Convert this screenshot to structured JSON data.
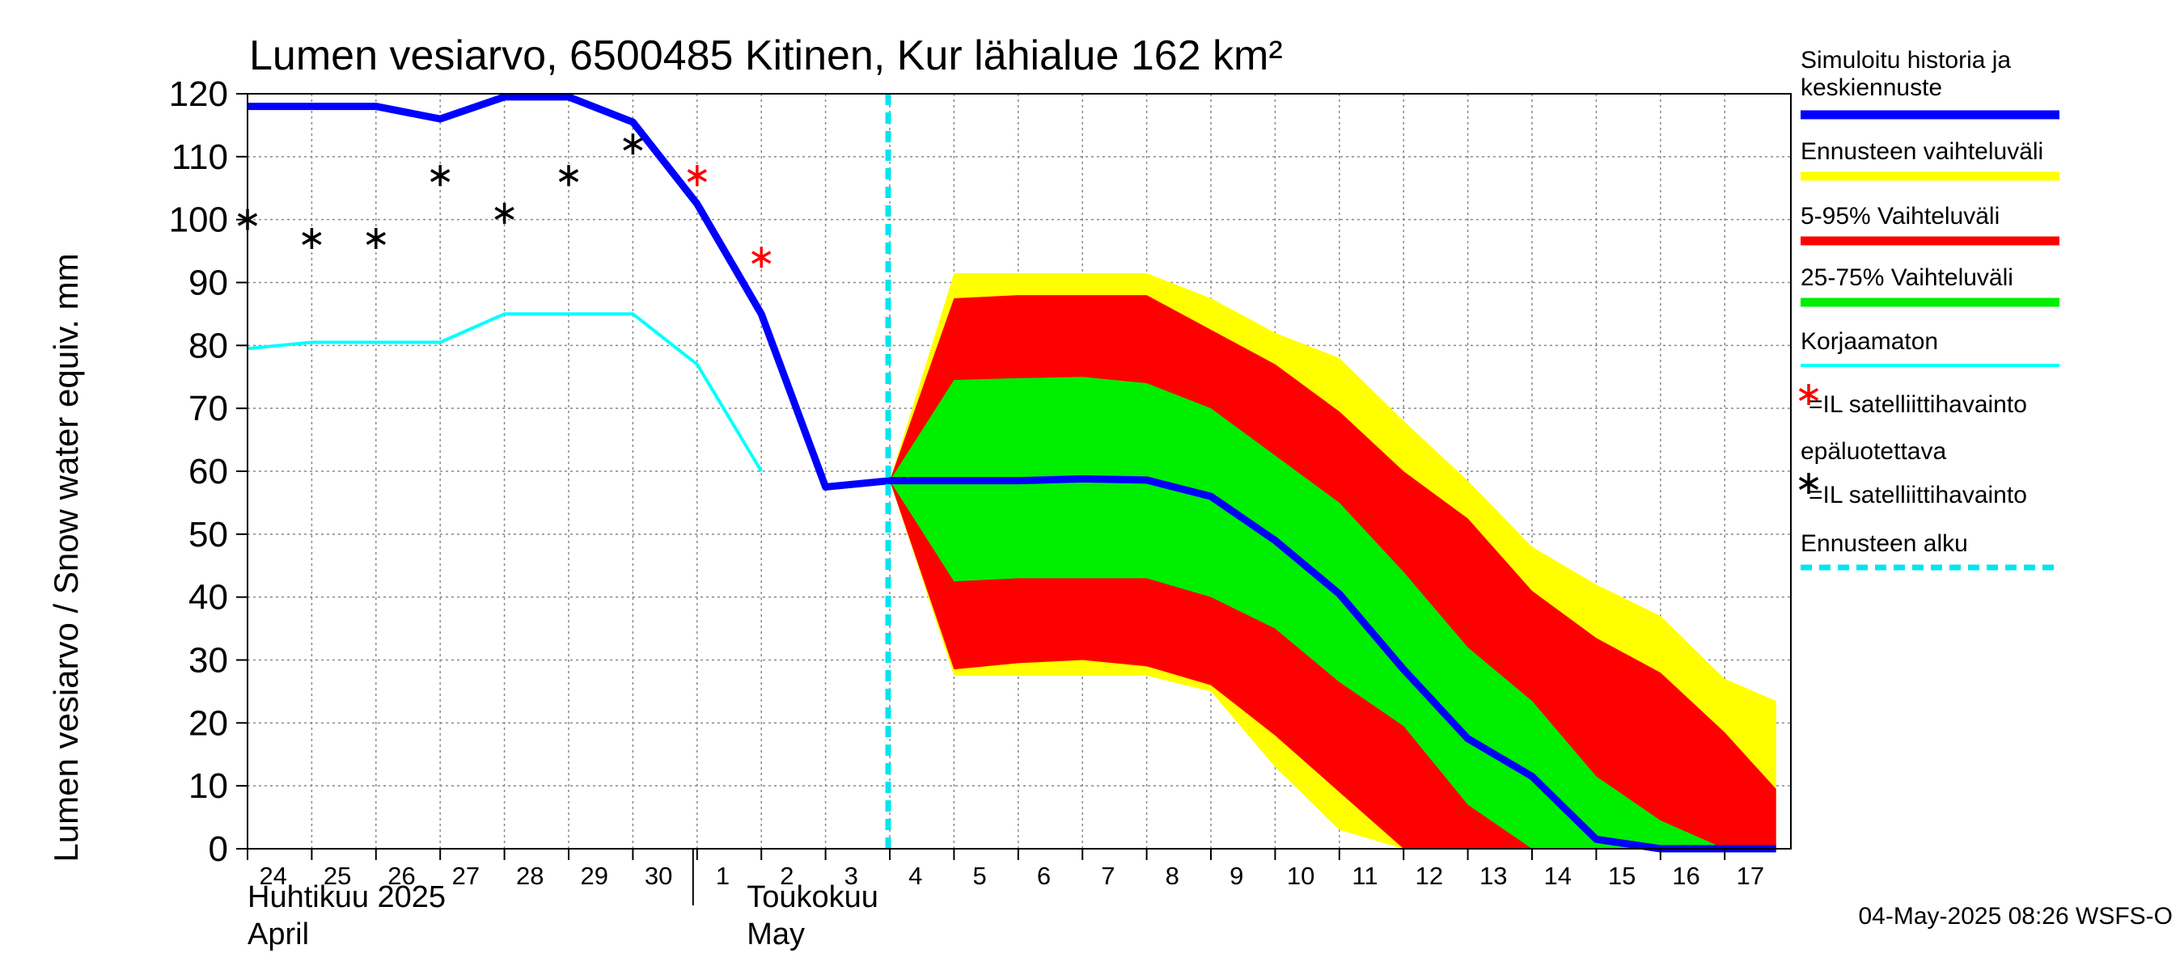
{
  "chart_data": {
    "type": "line",
    "title": "Lumen vesiarvo, 6500485 Kitinen, Kur lähialue 162 km²",
    "ylabel": "Lumen vesiarvo / Snow water equiv.    mm",
    "ylim": [
      0,
      120
    ],
    "yticks": [
      0,
      10,
      20,
      30,
      40,
      50,
      60,
      70,
      80,
      90,
      100,
      110,
      120
    ],
    "grid": true,
    "x_tick_labels": [
      "24",
      "25",
      "26",
      "27",
      "28",
      "29",
      "30",
      "1",
      "2",
      "3",
      "4",
      "5",
      "6",
      "7",
      "8",
      "9",
      "10",
      "11",
      "12",
      "13",
      "14",
      "15",
      "16",
      "17"
    ],
    "month_labels": [
      {
        "line1": "Huhtikuu  2025",
        "line2": "April"
      },
      {
        "line1": "Toukokuu",
        "line2": "May"
      }
    ],
    "forecast_start_day": 10,
    "series": [
      {
        "name": "Simuloitu historia ja keskiennuste",
        "color": "#0000ff",
        "x": [
          0,
          1,
          2,
          3,
          4,
          5,
          6,
          7,
          8,
          9,
          10,
          11,
          12,
          13,
          14,
          15,
          16,
          17,
          18,
          19,
          20,
          21,
          22,
          23,
          23.8
        ],
        "y": [
          118,
          118,
          118,
          116,
          119.5,
          119.5,
          115.5,
          102.5,
          85,
          57.5,
          58.5,
          58.5,
          58.5,
          58.8,
          58.6,
          56,
          49,
          40.5,
          28.5,
          17.5,
          11.5,
          1.5,
          0,
          0,
          0
        ]
      },
      {
        "name": "Korjaamaton",
        "color": "#00ffff",
        "x": [
          0,
          1,
          2,
          3,
          4,
          5,
          6,
          7,
          8
        ],
        "y": [
          79.5,
          80.5,
          80.5,
          80.5,
          85,
          85,
          85,
          77,
          60
        ]
      },
      {
        "name": "Ennusteen vaihteluväli",
        "color": "#ffff00",
        "x": [
          10,
          11,
          12,
          13,
          14,
          15,
          16,
          17,
          18,
          19,
          20,
          21,
          22,
          23,
          23.8
        ],
        "upper": [
          58.5,
          91.5,
          91.5,
          91.5,
          91.5,
          87.5,
          82,
          78,
          68,
          58.5,
          48,
          42,
          37,
          27,
          23.5
        ],
        "lower": [
          58.5,
          27.5,
          27.5,
          27.5,
          27.5,
          25,
          13,
          3,
          0,
          0,
          0,
          0,
          0,
          0,
          0
        ]
      },
      {
        "name": "5-95% Vaihteluväli",
        "color": "#ff0000",
        "x": [
          10,
          11,
          12,
          13,
          14,
          15,
          16,
          17,
          18,
          19,
          20,
          21,
          22,
          23,
          23.8
        ],
        "upper": [
          58.5,
          87.5,
          88,
          88,
          88,
          82.5,
          77,
          69.5,
          60,
          52.5,
          41,
          33.5,
          28,
          18.5,
          9.5
        ],
        "lower": [
          58.5,
          28.5,
          29.5,
          30,
          29,
          26,
          18,
          9,
          0,
          0,
          0,
          0,
          0,
          0,
          0
        ]
      },
      {
        "name": "25-75% Vaihteluväli",
        "color": "#00ee00",
        "x": [
          10,
          11,
          12,
          13,
          14,
          15,
          16,
          17,
          18,
          19,
          20,
          21,
          22,
          23,
          23.8
        ],
        "upper": [
          58.5,
          74.5,
          74.8,
          75,
          74,
          70,
          62.5,
          55,
          44,
          32,
          23.5,
          11.5,
          4.5,
          0,
          0
        ],
        "lower": [
          58.5,
          42.5,
          43,
          43,
          43,
          40,
          35,
          26.5,
          19.5,
          7,
          0,
          0,
          0,
          0,
          0
        ]
      },
      {
        "name": "=IL satelliittihavainto",
        "color": "#000000",
        "marker": "*",
        "x": [
          0,
          1,
          2,
          3,
          4,
          5,
          6
        ],
        "y": [
          100,
          97,
          97,
          107,
          101,
          107,
          112
        ]
      },
      {
        "name": "=IL satelliittihavainto epäluotettava",
        "color": "#ff0000",
        "marker": "*",
        "x": [
          7,
          8
        ],
        "y": [
          107,
          94
        ]
      },
      {
        "name": "Ennusteen alku",
        "color": "#00e5ee"
      }
    ],
    "legend": {
      "placement": "right",
      "items": [
        {
          "label": "Simuloitu historia ja keskiennuste",
          "color": "#0000ff",
          "kind": "line"
        },
        {
          "label": "Ennusteen vaihteluväli",
          "color": "#ffff00",
          "kind": "line"
        },
        {
          "label": "5-95% Vaihteluväli",
          "color": "#ff0000",
          "kind": "line"
        },
        {
          "label": "25-75% Vaihteluväli",
          "color": "#00ee00",
          "kind": "line"
        },
        {
          "label": "Korjaamaton",
          "color": "#00ffff",
          "kind": "thin"
        },
        {
          "label": "=IL satelliittihavainto",
          "color": "#ff0000",
          "kind": "star"
        },
        {
          "label": "epäluotettava",
          "color": "#000000",
          "kind": "text"
        },
        {
          "label": "=IL satelliittihavainto",
          "color": "#000000",
          "kind": "star"
        },
        {
          "label": "Ennusteen alku",
          "color": "#00e5ee",
          "kind": "dash"
        }
      ]
    },
    "timestamp": "04-May-2025 08:26 WSFS-O"
  }
}
